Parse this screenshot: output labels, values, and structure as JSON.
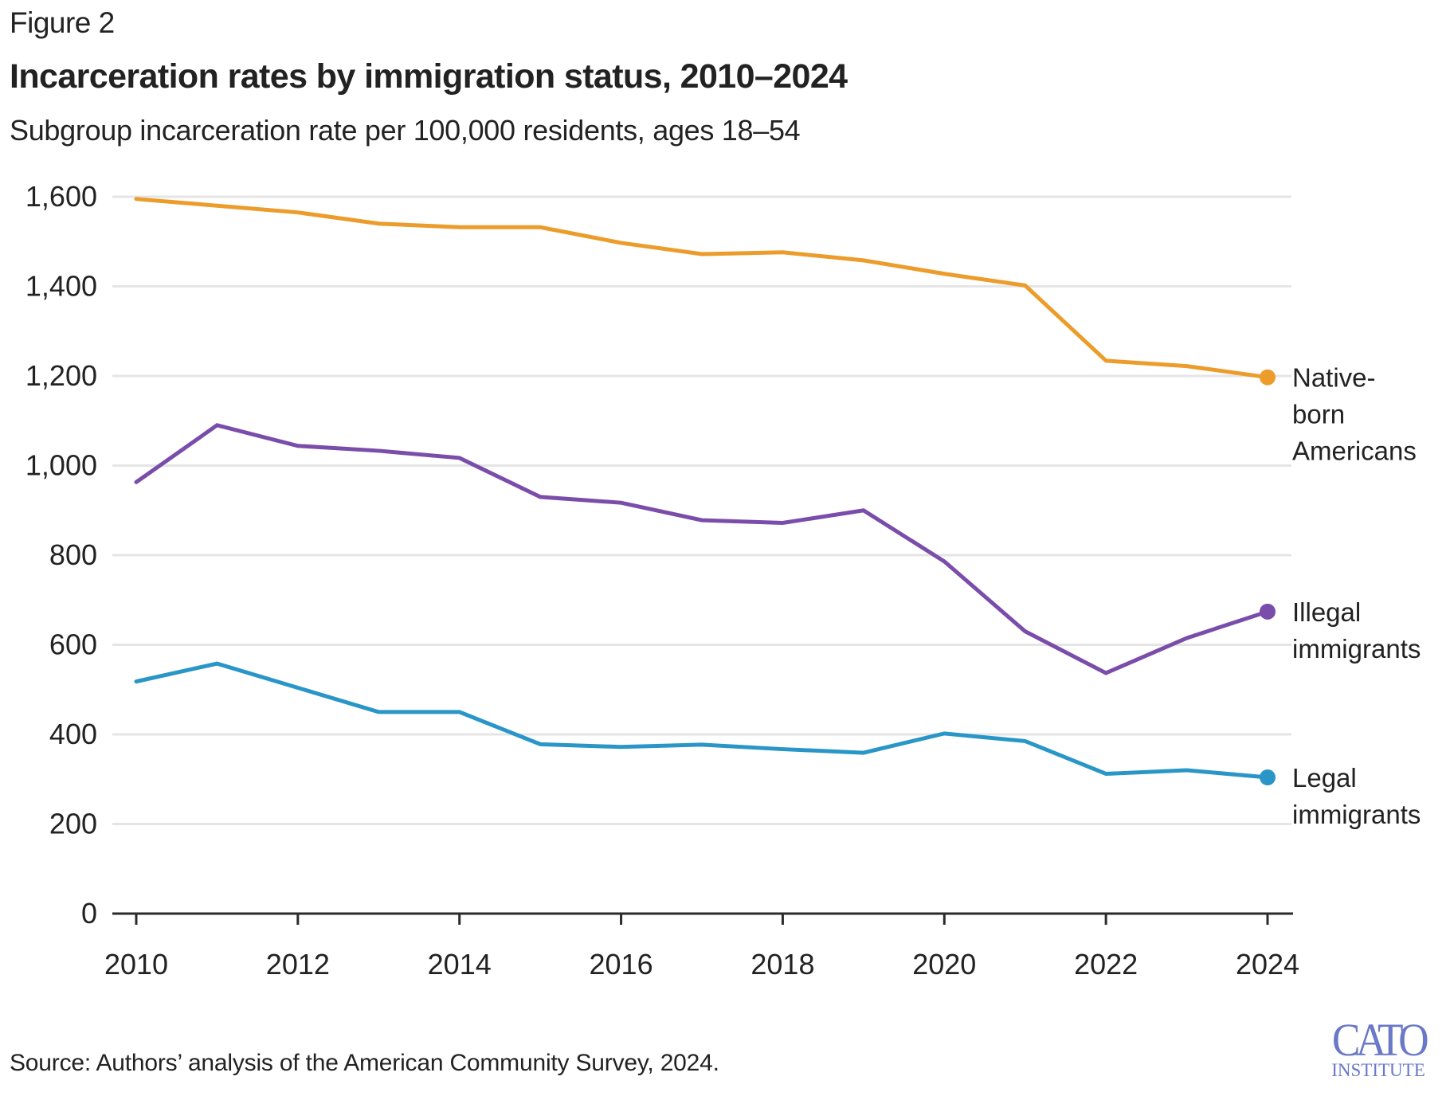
{
  "header": {
    "figure_label": "Figure 2",
    "title": "Incarceration rates by immigration status, 2010–2024",
    "subtitle": "Subgroup incarceration rate per 100,000 residents, ages 18–54"
  },
  "footer": {
    "source": "Source: Authors’ analysis of the American Community Survey, 2024.",
    "logo_main": "CATO",
    "logo_sub": "INSTITUTE"
  },
  "chart_data": {
    "type": "line",
    "title": "Incarceration rates by immigration status, 2010–2024",
    "subtitle": "Subgroup incarceration rate per 100,000 residents, ages 18–54",
    "xlabel": "",
    "ylabel": "",
    "x": [
      2010,
      2011,
      2012,
      2013,
      2014,
      2015,
      2016,
      2017,
      2018,
      2019,
      2020,
      2021,
      2022,
      2023,
      2024
    ],
    "xlim": [
      2010,
      2024
    ],
    "ylim": [
      0,
      1600
    ],
    "x_ticks": [
      2010,
      2012,
      2014,
      2016,
      2018,
      2020,
      2022,
      2024
    ],
    "x_tick_labels": [
      "2010",
      "2012",
      "2014",
      "2016",
      "2018",
      "2020",
      "2022",
      "2024"
    ],
    "y_ticks": [
      0,
      200,
      400,
      600,
      800,
      1000,
      1200,
      1400,
      1600
    ],
    "y_tick_labels": [
      "0",
      "200",
      "400",
      "600",
      "800",
      "1,000",
      "1,200",
      "1,400",
      "1,600"
    ],
    "grid": true,
    "legend": "direct labels at line ends (right)",
    "series": [
      {
        "name": "Native-born Americans",
        "label_lines": [
          "Native-",
          "born",
          "Americans"
        ],
        "color": "#ec9c2a",
        "values": [
          1595,
          1580,
          1565,
          1540,
          1532,
          1532,
          1497,
          1472,
          1476,
          1458,
          1428,
          1402,
          1234,
          1222,
          1197
        ]
      },
      {
        "name": "Illegal immigrants",
        "label_lines": [
          "Illegal",
          "immigrants"
        ],
        "color": "#7b4daa",
        "values": [
          963,
          1090,
          1044,
          1033,
          1017,
          930,
          917,
          878,
          872,
          900,
          786,
          630,
          537,
          615,
          674
        ]
      },
      {
        "name": "Legal immigrants",
        "label_lines": [
          "Legal",
          "immigrants"
        ],
        "color": "#2a96c8",
        "values": [
          518,
          558,
          504,
          450,
          450,
          378,
          372,
          377,
          367,
          359,
          402,
          385,
          312,
          320,
          304
        ]
      }
    ]
  }
}
